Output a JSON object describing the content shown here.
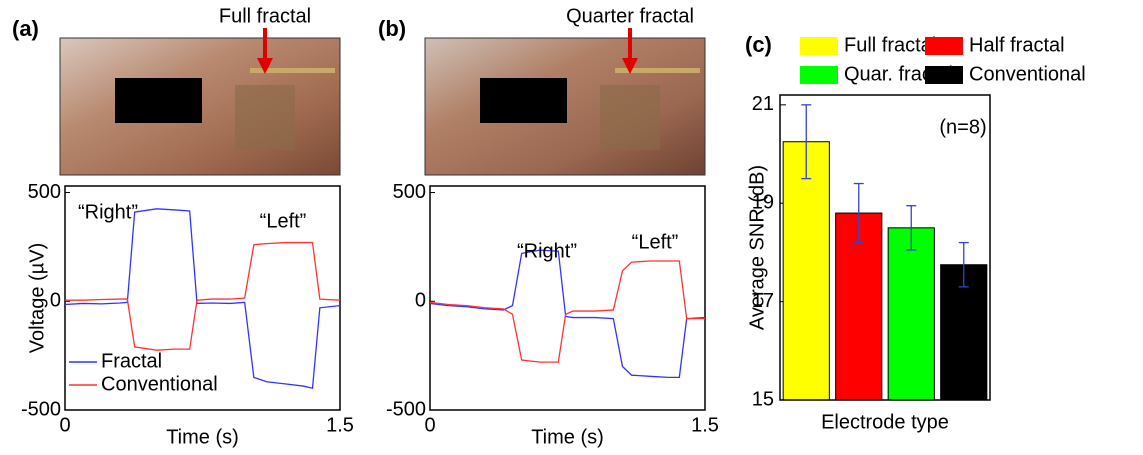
{
  "chart_data": [
    {
      "type": "line",
      "panel_label": "(a)",
      "photo_label": "Full fractal",
      "xlabel": "Time (s)",
      "ylabel": "Voltage (µV)",
      "annotations": [
        "“Right”",
        "“Left”"
      ],
      "x": [
        0,
        0.1,
        0.2,
        0.3,
        0.34,
        0.38,
        0.5,
        0.6,
        0.68,
        0.72,
        0.8,
        0.9,
        0.98,
        1.03,
        1.1,
        1.2,
        1.3,
        1.35,
        1.39,
        1.5
      ],
      "series": [
        {
          "name": "Fractal",
          "color": "#3333ff",
          "values": [
            -15,
            -10,
            -12,
            -8,
            -5,
            410,
            425,
            420,
            415,
            -10,
            -8,
            -10,
            -5,
            -350,
            -370,
            -380,
            -390,
            -400,
            -30,
            -20
          ]
        },
        {
          "name": "Conventional",
          "color": "#ff3333",
          "values": [
            5,
            5,
            8,
            10,
            10,
            -210,
            -225,
            -220,
            -220,
            5,
            10,
            10,
            15,
            260,
            265,
            270,
            270,
            270,
            10,
            5
          ]
        }
      ],
      "xlim": [
        0,
        1.5
      ],
      "xticks": [
        0,
        1.5
      ],
      "ylim": [
        -500,
        530
      ],
      "yticks": [
        -500,
        0,
        500
      ],
      "legend": "lower left"
    },
    {
      "type": "line",
      "panel_label": "(b)",
      "photo_label": "Quarter fractal",
      "xlabel": "Time (s)",
      "annotations": [
        "“Right”",
        "“Left”"
      ],
      "x": [
        0,
        0.1,
        0.2,
        0.3,
        0.4,
        0.45,
        0.5,
        0.6,
        0.7,
        0.74,
        0.78,
        0.9,
        1.0,
        1.05,
        1.1,
        1.2,
        1.3,
        1.36,
        1.4,
        1.5
      ],
      "series": [
        {
          "color": "#3333ff",
          "values": [
            -10,
            -20,
            -25,
            -35,
            -40,
            -20,
            220,
            235,
            230,
            -70,
            -75,
            -75,
            -80,
            -300,
            -340,
            -345,
            -350,
            -350,
            -80,
            -75
          ]
        },
        {
          "color": "#ff3333",
          "values": [
            -5,
            -15,
            -20,
            -30,
            -35,
            -60,
            -270,
            -280,
            -280,
            -60,
            -45,
            -45,
            -40,
            140,
            180,
            185,
            185,
            185,
            -80,
            -80
          ]
        }
      ],
      "xlim": [
        0,
        1.5
      ],
      "xticks": [
        0,
        1.5
      ],
      "ylim": [
        -500,
        530
      ],
      "yticks": [
        -500,
        0,
        500
      ]
    },
    {
      "type": "bar",
      "panel_label": "(c)",
      "xlabel": "Electrode type",
      "ylabel": "Average SNR (dB)",
      "annotations": [
        "(n=8)"
      ],
      "categories": [
        "Full fractal",
        "Half fractal",
        "Quar. fractal",
        "Conventional"
      ],
      "colors": [
        "#ffff00",
        "#ff0000",
        "#00ff00",
        "#000000"
      ],
      "values": [
        20.25,
        18.8,
        18.5,
        17.75
      ],
      "errors": [
        0.75,
        0.6,
        0.45,
        0.45
      ],
      "error_color": "#3344cc",
      "ylim": [
        15,
        21.2
      ],
      "yticks": [
        15,
        17,
        19,
        21
      ]
    }
  ]
}
